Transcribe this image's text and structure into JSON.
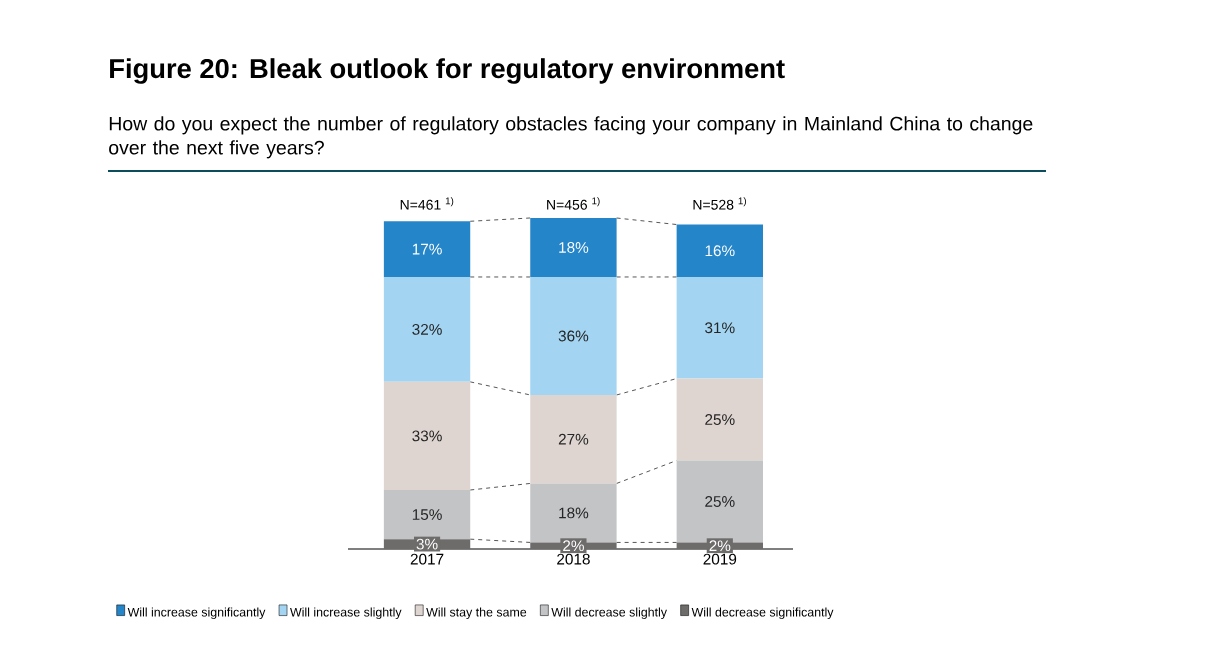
{
  "chart_data": {
    "type": "bar",
    "stacked": true,
    "title": "Figure 20: Bleak outlook for regulatory environment",
    "subtitle": "How do you expect the number of regulatory obstacles facing your company in Mainland China to change over the next five years?",
    "categories": [
      "2017",
      "2018",
      "2019"
    ],
    "series": [
      {
        "name": "Will decrease significantly",
        "color": "#6e6b6b",
        "values": [
          3,
          2,
          2
        ],
        "value_labels": [
          "3%",
          "2%",
          "2%"
        ]
      },
      {
        "name": "Will decrease slightly",
        "color": "#c3c4c6",
        "values": [
          15,
          18,
          25
        ],
        "value_labels": [
          "15%",
          "18%",
          "25%"
        ]
      },
      {
        "name": "Will stay the same",
        "color": "#ded5d0",
        "values": [
          33,
          27,
          25
        ],
        "value_labels": [
          "33%",
          "27%",
          "25%"
        ]
      },
      {
        "name": "Will increase slightly",
        "color": "#a3d5f3",
        "values": [
          32,
          36,
          31
        ],
        "value_labels": [
          "32%",
          "36%",
          "31%"
        ]
      },
      {
        "name": "Will increase significantly",
        "color": "#2585c9",
        "values": [
          17,
          18,
          16
        ],
        "value_labels": [
          "17%",
          "18%",
          "16%"
        ]
      }
    ],
    "annotations": [
      "N=461 $^{1)}$",
      "N=456 $^{1)}$",
      "N=528 $^{1)}$"
    ],
    "legend": "bottom",
    "grid": false
  }
}
